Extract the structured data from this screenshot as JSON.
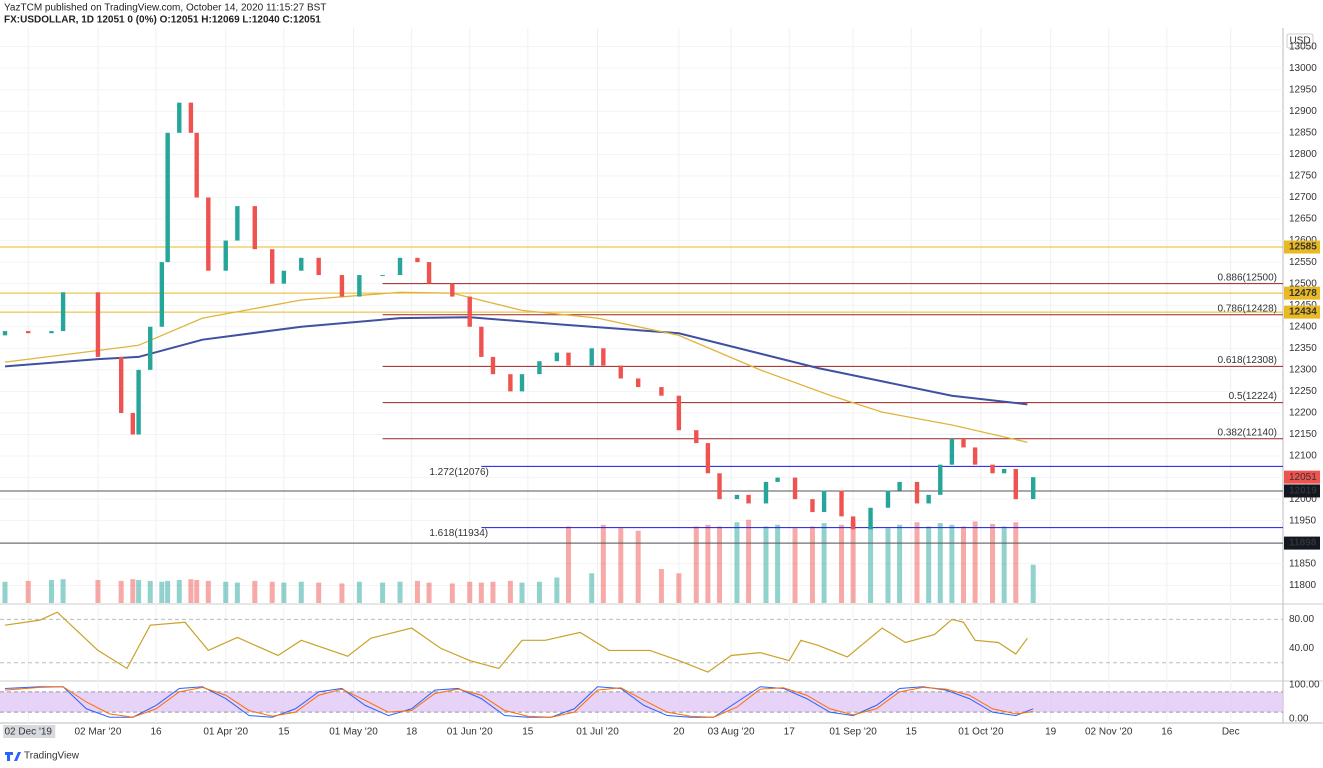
{
  "chart_data": {
    "type": "candlestick",
    "title": "YazTCM published on TradingView.com, October 14, 2020 11:15:27 BST",
    "subtitle": "FX:USDOLLAR, 1D  12051  0 (0%)  O:12051  H:12069  L:12040  C:12051",
    "currency": "USD",
    "brand": "TradingView",
    "up_color": "#26a69a",
    "down_color": "#ef5350",
    "x": [
      0,
      4,
      8,
      10,
      16,
      20,
      22,
      23,
      25,
      27,
      28,
      30,
      32,
      33,
      35,
      38,
      40,
      43,
      46,
      48,
      51,
      54,
      58,
      61,
      65,
      68,
      71,
      73,
      77,
      80,
      82,
      84,
      87,
      89,
      92,
      95,
      97,
      101,
      103,
      106,
      109,
      113,
      116,
      119,
      121,
      123,
      126,
      128,
      131,
      133,
      136,
      139,
      141,
      144,
      146,
      149,
      152,
      154,
      157,
      159,
      161,
      163,
      165,
      167,
      170,
      172,
      174,
      177
    ],
    "open": [
      12380,
      12390,
      12385,
      12390,
      12480,
      12330,
      12200,
      12150,
      12300,
      12400,
      12550,
      12850,
      12920,
      12850,
      12700,
      12530,
      12600,
      12680,
      12580,
      12500,
      12530,
      12560,
      12520,
      12470,
      12520,
      12520,
      12560,
      12550,
      12500,
      12470,
      12400,
      12330,
      12290,
      12250,
      12290,
      12320,
      12340,
      12310,
      12350,
      12310,
      12280,
      12260,
      12240,
      12160,
      12130,
      12060,
      12000,
      12010,
      11990,
      12040,
      12050,
      12000,
      11970,
      12020,
      11960,
      11930,
      11980,
      12020,
      12040,
      11990,
      12010,
      12080,
      12140,
      12120,
      12080,
      12060,
      12070,
      12000
    ],
    "close": [
      12390,
      12385,
      12390,
      12480,
      12330,
      12200,
      12150,
      12300,
      12400,
      12550,
      12850,
      12920,
      12850,
      12700,
      12530,
      12600,
      12680,
      12580,
      12500,
      12530,
      12560,
      12520,
      12470,
      12520,
      12520,
      12560,
      12550,
      12500,
      12470,
      12400,
      12330,
      12290,
      12250,
      12290,
      12320,
      12340,
      12310,
      12350,
      12310,
      12280,
      12260,
      12240,
      12160,
      12130,
      12060,
      12000,
      12010,
      11990,
      12040,
      12050,
      12000,
      11970,
      12020,
      11960,
      11930,
      11980,
      12020,
      12040,
      11990,
      12010,
      12080,
      12140,
      12120,
      12080,
      12060,
      12070,
      12000,
      12051
    ],
    "volume": [
      25,
      26,
      27,
      28,
      27,
      26,
      28,
      27,
      26,
      25,
      26,
      27,
      28,
      27,
      26,
      25,
      24,
      26,
      25,
      24,
      25,
      24,
      23,
      25,
      24,
      25,
      26,
      24,
      23,
      25,
      24,
      25,
      26,
      24,
      25,
      30,
      90,
      35,
      92,
      88,
      85,
      40,
      35,
      90,
      92,
      90,
      95,
      98,
      90,
      92,
      88,
      90,
      94,
      92,
      96,
      90,
      88,
      92,
      95,
      90,
      94,
      92,
      90,
      96,
      93,
      90,
      95,
      45
    ],
    "xlim": [
      0,
      220
    ],
    "xticks": [
      {
        "value": 4,
        "label": "02 Dec '19"
      },
      {
        "value": 16,
        "label": "02 Mar '20"
      },
      {
        "value": 26,
        "label": "16"
      },
      {
        "value": 38,
        "label": "01 Apr '20"
      },
      {
        "value": 48,
        "label": "15"
      },
      {
        "value": 60,
        "label": "01 May '20"
      },
      {
        "value": 70,
        "label": "18"
      },
      {
        "value": 80,
        "label": "01 Jun '20"
      },
      {
        "value": 90,
        "label": "15"
      },
      {
        "value": 102,
        "label": "01 Jul '20"
      },
      {
        "value": 116,
        "label": "20"
      },
      {
        "value": 125,
        "label": "03 Aug '20"
      },
      {
        "value": 135,
        "label": "17"
      },
      {
        "value": 146,
        "label": "01 Sep '20"
      },
      {
        "value": 156,
        "label": "15"
      },
      {
        "value": 168,
        "label": "01 Oct '20"
      },
      {
        "value": 180,
        "label": "19"
      },
      {
        "value": 190,
        "label": "02 Nov '20"
      },
      {
        "value": 200,
        "label": "16"
      },
      {
        "value": 211,
        "label": "Dec"
      }
    ],
    "ylim": [
      11759,
      13077
    ],
    "yticks": [
      11800,
      11850,
      11900,
      11950,
      12000,
      12050,
      12100,
      12150,
      12200,
      12250,
      12300,
      12350,
      12400,
      12450,
      12500,
      12550,
      12600,
      12650,
      12700,
      12750,
      12800,
      12850,
      12900,
      12950,
      13000,
      13050
    ],
    "grid": true,
    "lines": [
      {
        "color": "#3f51a0",
        "x": [
          0,
          16,
          23,
          34,
          51,
          68,
          80,
          96,
          116,
          140,
          163,
          176
        ],
        "values": [
          12308,
          12325,
          12330,
          12370,
          12400,
          12420,
          12422,
          12405,
          12385,
          12304,
          12240,
          12220
        ]
      },
      {
        "color": "#e0b43c",
        "x": [
          0,
          16,
          23,
          34,
          51,
          68,
          77,
          89,
          102,
          116,
          130,
          142,
          151,
          163,
          176
        ],
        "values": [
          12318,
          12345,
          12357,
          12420,
          12462,
          12480,
          12478,
          12438,
          12420,
          12380,
          12300,
          12241,
          12202,
          12172,
          12132
        ]
      }
    ],
    "levels": [
      {
        "value": 12585,
        "color": "#e8b923",
        "badge": true
      },
      {
        "value": 12478,
        "color": "#e8b923",
        "badge": true
      },
      {
        "value": 12434,
        "color": "#e8b923",
        "badge": true
      },
      {
        "value": 12019,
        "color": "#555555",
        "badge": true
      },
      {
        "value": 11898,
        "color": "#555555",
        "badge": true
      },
      {
        "value": 12500,
        "color": "#9c2323",
        "start": 65,
        "label": "0.886(12500)"
      },
      {
        "value": 12428,
        "color": "#9c2323",
        "start": 65,
        "label": "0.786(12428)"
      },
      {
        "value": 12308,
        "color": "#9c2323",
        "start": 65,
        "label": "0.618(12308)"
      },
      {
        "value": 12224,
        "color": "#9c2323",
        "start": 65,
        "label": "0.5(12224)"
      },
      {
        "value": 12140,
        "color": "#9c2323",
        "start": 65,
        "label": "0.382(12140)"
      },
      {
        "value": 12076,
        "color": "#1a1adb",
        "start": 82,
        "label": "1.272(12076)"
      },
      {
        "value": 11934,
        "color": "#1a1adb",
        "start": 82,
        "label": "1.618(11934)"
      }
    ],
    "price_badge": {
      "value": 12051,
      "color": "#ef5350"
    },
    "rsi": {
      "color": "#c9a227",
      "ylim": [
        -4,
        100
      ],
      "yticks": [
        {
          "value": 80,
          "label": "80.00"
        },
        {
          "value": 40,
          "label": "40.00"
        }
      ],
      "bands": [
        80,
        20
      ],
      "x": [
        0,
        6,
        9,
        16,
        21,
        25,
        31,
        35,
        40,
        47,
        51,
        59,
        63,
        70,
        75,
        80,
        85,
        89,
        93,
        99,
        104,
        111,
        116,
        121,
        125,
        130,
        135,
        137,
        140,
        145,
        151,
        155,
        160,
        163,
        165,
        167,
        171,
        174,
        176
      ],
      "values": [
        72,
        79,
        90,
        37,
        12,
        72,
        76,
        37,
        55,
        30,
        51,
        29,
        54,
        68,
        40,
        23,
        12,
        51,
        51,
        62,
        37,
        37,
        23,
        7,
        30,
        34,
        23,
        51,
        44,
        28,
        68,
        48,
        59,
        80,
        76,
        51,
        48,
        32,
        54
      ]
    },
    "stoch": {
      "ylim": [
        -9,
        109
      ],
      "yticks": [
        {
          "value": 100,
          "label": "100.00"
        },
        {
          "value": 0,
          "label": "0.00"
        }
      ],
      "band": [
        20,
        80
      ],
      "band_color": "#e1c8f5",
      "x": [
        0,
        6,
        10,
        14,
        18,
        22,
        26,
        30,
        34,
        38,
        42,
        46,
        50,
        54,
        58,
        62,
        66,
        70,
        74,
        78,
        82,
        86,
        90,
        94,
        98,
        102,
        106,
        110,
        114,
        118,
        122,
        126,
        130,
        134,
        138,
        142,
        146,
        150,
        154,
        158,
        162,
        166,
        170,
        174,
        177
      ],
      "series": [
        {
          "color": "#2962ff",
          "values": [
            90,
            95,
            95,
            30,
            5,
            5,
            40,
            90,
            95,
            60,
            10,
            5,
            30,
            80,
            90,
            40,
            10,
            30,
            85,
            90,
            60,
            10,
            5,
            5,
            30,
            95,
            90,
            40,
            10,
            5,
            5,
            50,
            95,
            90,
            60,
            20,
            10,
            40,
            90,
            95,
            85,
            60,
            20,
            10,
            30
          ]
        },
        {
          "color": "#ff6d00",
          "values": [
            85,
            93,
            95,
            50,
            15,
            5,
            30,
            80,
            93,
            70,
            25,
            8,
            20,
            70,
            88,
            55,
            20,
            25,
            75,
            88,
            70,
            25,
            8,
            5,
            20,
            85,
            92,
            55,
            20,
            8,
            5,
            35,
            88,
            92,
            70,
            30,
            12,
            30,
            80,
            93,
            88,
            70,
            30,
            15,
            22
          ]
        }
      ]
    }
  }
}
